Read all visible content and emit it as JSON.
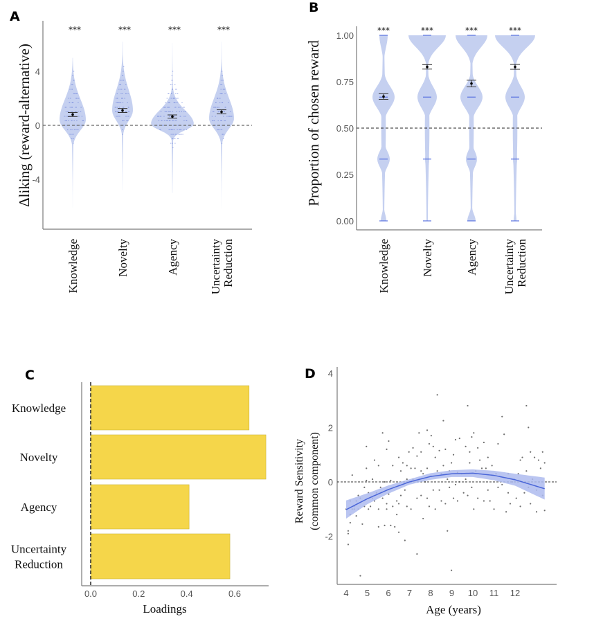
{
  "chart_data": [
    {
      "panel": "A",
      "type": "violin",
      "ylabel": "Δliking (reward-alternative)",
      "xlabel": "",
      "categories": [
        "Knowledge",
        "Novelty",
        "Agency",
        "Uncertainty\nReduction"
      ],
      "category_lines": [
        [
          "Knowledge"
        ],
        [
          "Novelty"
        ],
        [
          "Agency"
        ],
        [
          "Uncertainty",
          "Reduction"
        ]
      ],
      "yticks": [
        -4,
        0,
        4
      ],
      "ytick_labels": [
        "-4",
        "0",
        "4"
      ],
      "ylim": [
        -7.5,
        7.5
      ],
      "reference_line": 0,
      "significance": [
        "***",
        "***",
        "***",
        "***"
      ],
      "means": [
        0.8,
        1.1,
        0.65,
        1.0
      ],
      "se": [
        0.15,
        0.15,
        0.12,
        0.15
      ],
      "ranges": [
        [
          -6.1,
          5.0
        ],
        [
          -4.8,
          6.2
        ],
        [
          -5.0,
          6.1
        ],
        [
          -6.2,
          6.2
        ]
      ],
      "modes": [
        0.4,
        1.1,
        0.1,
        0.5
      ],
      "color": "#c5d0f0"
    },
    {
      "panel": "B",
      "type": "violin",
      "ylabel": "Proportion of chosen reward",
      "categories": [
        "Knowledge",
        "Novelty",
        "Agency",
        "Uncertainty\nReduction"
      ],
      "category_lines": [
        [
          "Knowledge"
        ],
        [
          "Novelty"
        ],
        [
          "Agency"
        ],
        [
          "Uncertainty",
          "Reduction"
        ]
      ],
      "yticks": [
        0,
        0.25,
        0.5,
        0.75,
        1.0
      ],
      "ytick_labels": [
        "0.00",
        "0.25",
        "0.50",
        "0.75",
        "1.00"
      ],
      "ylim": [
        0,
        1.0
      ],
      "reference_line": 0.5,
      "significance": [
        "***",
        "***",
        "***",
        "***"
      ],
      "means": [
        0.67,
        0.83,
        0.74,
        0.83
      ],
      "se": [
        0.015,
        0.012,
        0.018,
        0.013
      ],
      "discrete_levels": [
        0,
        0.333,
        0.667,
        1.0
      ],
      "color": "#c5d0f0"
    },
    {
      "panel": "C",
      "type": "bar",
      "orientation": "horizontal",
      "categories": [
        "Knowledge",
        "Novelty",
        "Agency",
        "Uncertainty\nReduction"
      ],
      "category_lines": [
        [
          "Knowledge"
        ],
        [
          "Novelty"
        ],
        [
          "Agency"
        ],
        [
          "Uncertainty",
          "Reduction"
        ]
      ],
      "values": [
        0.66,
        0.73,
        0.41,
        0.58
      ],
      "xlabel": "Loadings",
      "xticks": [
        0.0,
        0.2,
        0.4,
        0.6
      ],
      "xtick_labels": [
        "0.0",
        "0.2",
        "0.4",
        "0.6"
      ],
      "xlim": [
        -0.035,
        0.76
      ],
      "reference_line": 0,
      "color": "#f5d64a"
    },
    {
      "panel": "D",
      "type": "scatter",
      "xlabel": "Age (years)",
      "ylabel": "Reward Sensitivity\n(common component)",
      "ylabel_lines": [
        "Reward Sensitivity",
        "(common component)"
      ],
      "xticks": [
        4,
        5,
        6,
        7,
        8,
        9,
        10,
        11,
        12
      ],
      "xtick_labels": [
        "4",
        "5",
        "6",
        "7",
        "8",
        "9",
        "10",
        "11",
        "12"
      ],
      "yticks": [
        -2,
        0,
        2,
        4
      ],
      "ytick_labels": [
        "-2",
        "0",
        "2",
        "4"
      ],
      "xlim": [
        3.6,
        14.0
      ],
      "ylim": [
        -3.75,
        4.2
      ],
      "reference_line": 0,
      "fit": {
        "type": "quadratic",
        "x": [
          4.0,
          5.0,
          6.0,
          7.0,
          8.0,
          9.0,
          10.0,
          11.0,
          12.0,
          13.4
        ],
        "y": [
          -1.02,
          -0.62,
          -0.28,
          0.0,
          0.2,
          0.3,
          0.32,
          0.24,
          0.08,
          -0.25
        ],
        "ci_low": [
          -1.35,
          -0.82,
          -0.43,
          -0.1,
          0.08,
          0.18,
          0.18,
          0.06,
          -0.14,
          -0.65
        ],
        "ci_high": [
          -0.68,
          -0.42,
          -0.13,
          0.1,
          0.32,
          0.43,
          0.46,
          0.41,
          0.3,
          0.16
        ],
        "color": "#4a66d8",
        "band_color": "#aebbee"
      },
      "points": [
        [
          4.0,
          -1.0
        ],
        [
          4.1,
          -1.8
        ],
        [
          4.1,
          -2.3
        ],
        [
          4.1,
          -1.9
        ],
        [
          4.2,
          -1.5
        ],
        [
          4.2,
          -0.7
        ],
        [
          4.2,
          -1.2
        ],
        [
          4.3,
          0.25
        ],
        [
          4.3,
          -1.0
        ],
        [
          4.4,
          -0.9
        ],
        [
          4.4,
          -1.0
        ],
        [
          4.5,
          -1.25
        ],
        [
          4.5,
          -0.7
        ],
        [
          4.6,
          -0.5
        ],
        [
          4.6,
          -1.0
        ],
        [
          4.7,
          -3.45
        ],
        [
          4.7,
          -0.6
        ],
        [
          4.8,
          -1.55
        ],
        [
          4.9,
          -0.2
        ],
        [
          4.9,
          -0.9
        ],
        [
          5.0,
          0.05
        ],
        [
          5.0,
          1.3
        ],
        [
          5.0,
          0.5
        ],
        [
          5.1,
          -0.4
        ],
        [
          5.1,
          -1.0
        ],
        [
          5.2,
          -0.9
        ],
        [
          5.3,
          0.1
        ],
        [
          5.3,
          -0.6
        ],
        [
          5.4,
          0.8
        ],
        [
          5.4,
          -0.7
        ],
        [
          5.5,
          -0.4
        ],
        [
          5.6,
          0.6
        ],
        [
          5.6,
          -1.65
        ],
        [
          5.6,
          -1.0
        ],
        [
          5.7,
          -0.2
        ],
        [
          5.8,
          1.8
        ],
        [
          5.8,
          -0.6
        ],
        [
          5.9,
          0.0
        ],
        [
          5.9,
          -1.6
        ],
        [
          6.0,
          1.2
        ],
        [
          6.0,
          -0.8
        ],
        [
          6.0,
          -1.0
        ],
        [
          6.1,
          1.5
        ],
        [
          6.1,
          -0.45
        ],
        [
          6.2,
          0.05
        ],
        [
          6.2,
          -1.6
        ],
        [
          6.3,
          0.6
        ],
        [
          6.3,
          -0.9
        ],
        [
          6.4,
          -1.65
        ],
        [
          6.5,
          -0.7
        ],
        [
          6.5,
          -1.2
        ],
        [
          6.6,
          0.9
        ],
        [
          6.6,
          -0.8
        ],
        [
          6.6,
          -1.85
        ],
        [
          6.7,
          0.4
        ],
        [
          6.7,
          -0.5
        ],
        [
          6.8,
          0.7
        ],
        [
          6.9,
          -2.15
        ],
        [
          6.9,
          -0.3
        ],
        [
          7.0,
          0.6
        ],
        [
          7.0,
          -0.9
        ],
        [
          7.0,
          0.1
        ],
        [
          7.1,
          1.1
        ],
        [
          7.2,
          0.5
        ],
        [
          7.2,
          -1.0
        ],
        [
          7.3,
          1.25
        ],
        [
          7.3,
          0.1
        ],
        [
          7.4,
          0.5
        ],
        [
          7.5,
          0.95
        ],
        [
          7.5,
          -0.6
        ],
        [
          7.5,
          -2.65
        ],
        [
          7.6,
          1.8
        ],
        [
          7.6,
          0.1
        ],
        [
          7.7,
          1.1
        ],
        [
          7.7,
          0.4
        ],
        [
          7.7,
          -0.5
        ],
        [
          7.8,
          -1.35
        ],
        [
          7.8,
          0.3
        ],
        [
          7.9,
          0.0
        ],
        [
          8.0,
          1.9
        ],
        [
          8.0,
          0.5
        ],
        [
          8.0,
          -0.6
        ],
        [
          8.1,
          1.4
        ],
        [
          8.1,
          -0.9
        ],
        [
          8.2,
          1.7
        ],
        [
          8.2,
          0.2
        ],
        [
          8.3,
          1.3
        ],
        [
          8.3,
          -0.3
        ],
        [
          8.4,
          0.9
        ],
        [
          8.4,
          -1.0
        ],
        [
          8.5,
          3.2
        ],
        [
          8.5,
          0.4
        ],
        [
          8.6,
          1.15
        ],
        [
          8.6,
          -0.3
        ],
        [
          8.7,
          0.3
        ],
        [
          8.7,
          -0.7
        ],
        [
          8.8,
          2.25
        ],
        [
          8.8,
          0.6
        ],
        [
          8.9,
          -0.8
        ],
        [
          8.9,
          1.2
        ],
        [
          9.0,
          0.1
        ],
        [
          9.0,
          -1.8
        ],
        [
          9.1,
          0.4
        ],
        [
          9.1,
          -0.2
        ],
        [
          9.2,
          0.7
        ],
        [
          9.2,
          -3.25
        ],
        [
          9.3,
          1.0
        ],
        [
          9.3,
          -0.6
        ],
        [
          9.4,
          1.55
        ],
        [
          9.4,
          -0.1
        ],
        [
          9.5,
          0.35
        ],
        [
          9.5,
          -0.7
        ],
        [
          9.6,
          1.6
        ],
        [
          9.6,
          0.0
        ],
        [
          9.7,
          0.3
        ],
        [
          9.8,
          -0.4
        ],
        [
          9.9,
          1.3
        ],
        [
          9.9,
          0.1
        ],
        [
          10.0,
          2.8
        ],
        [
          10.0,
          -0.5
        ],
        [
          10.1,
          1.1
        ],
        [
          10.1,
          0.7
        ],
        [
          10.2,
          1.65
        ],
        [
          10.2,
          -0.2
        ],
        [
          10.3,
          1.8
        ],
        [
          10.3,
          -1.0
        ],
        [
          10.4,
          0.4
        ],
        [
          10.5,
          1.25
        ],
        [
          10.5,
          -0.6
        ],
        [
          10.6,
          0.8
        ],
        [
          10.7,
          0.5
        ],
        [
          10.8,
          -0.7
        ],
        [
          10.8,
          1.45
        ],
        [
          10.9,
          0.5
        ],
        [
          11.0,
          0.9
        ],
        [
          11.0,
          -0.3
        ],
        [
          11.1,
          -0.7
        ],
        [
          11.2,
          0.6
        ],
        [
          11.3,
          -1.0
        ],
        [
          11.4,
          0.3
        ],
        [
          11.5,
          1.4
        ],
        [
          11.5,
          -0.2
        ],
        [
          11.7,
          2.4
        ],
        [
          11.7,
          -0.1
        ],
        [
          11.8,
          1.75
        ],
        [
          11.9,
          -1.1
        ],
        [
          12.0,
          0.3
        ],
        [
          12.0,
          -0.4
        ],
        [
          12.1,
          -0.8
        ],
        [
          12.2,
          0.0
        ],
        [
          12.3,
          0.1
        ],
        [
          12.4,
          -0.6
        ],
        [
          12.5,
          0.3
        ],
        [
          12.6,
          0.8
        ],
        [
          12.6,
          -0.9
        ],
        [
          12.7,
          0.9
        ],
        [
          12.8,
          -0.4
        ],
        [
          12.9,
          2.8
        ],
        [
          12.9,
          0.4
        ],
        [
          13.0,
          2.0
        ],
        [
          13.0,
          -0.2
        ],
        [
          13.1,
          1.1
        ],
        [
          13.1,
          -0.8
        ],
        [
          13.2,
          0.1
        ],
        [
          13.3,
          0.9
        ],
        [
          13.4,
          -0.3
        ],
        [
          13.4,
          -1.1
        ],
        [
          13.5,
          0.8
        ],
        [
          13.6,
          0.5
        ],
        [
          13.7,
          -0.5
        ],
        [
          13.7,
          1.1
        ],
        [
          13.8,
          0.7
        ],
        [
          13.8,
          -1.05
        ]
      ],
      "point_color": "#555555"
    }
  ],
  "panels": {
    "A": {
      "letter": "A"
    },
    "B": {
      "letter": "B"
    },
    "C": {
      "letter": "C"
    },
    "D": {
      "letter": "D"
    }
  }
}
